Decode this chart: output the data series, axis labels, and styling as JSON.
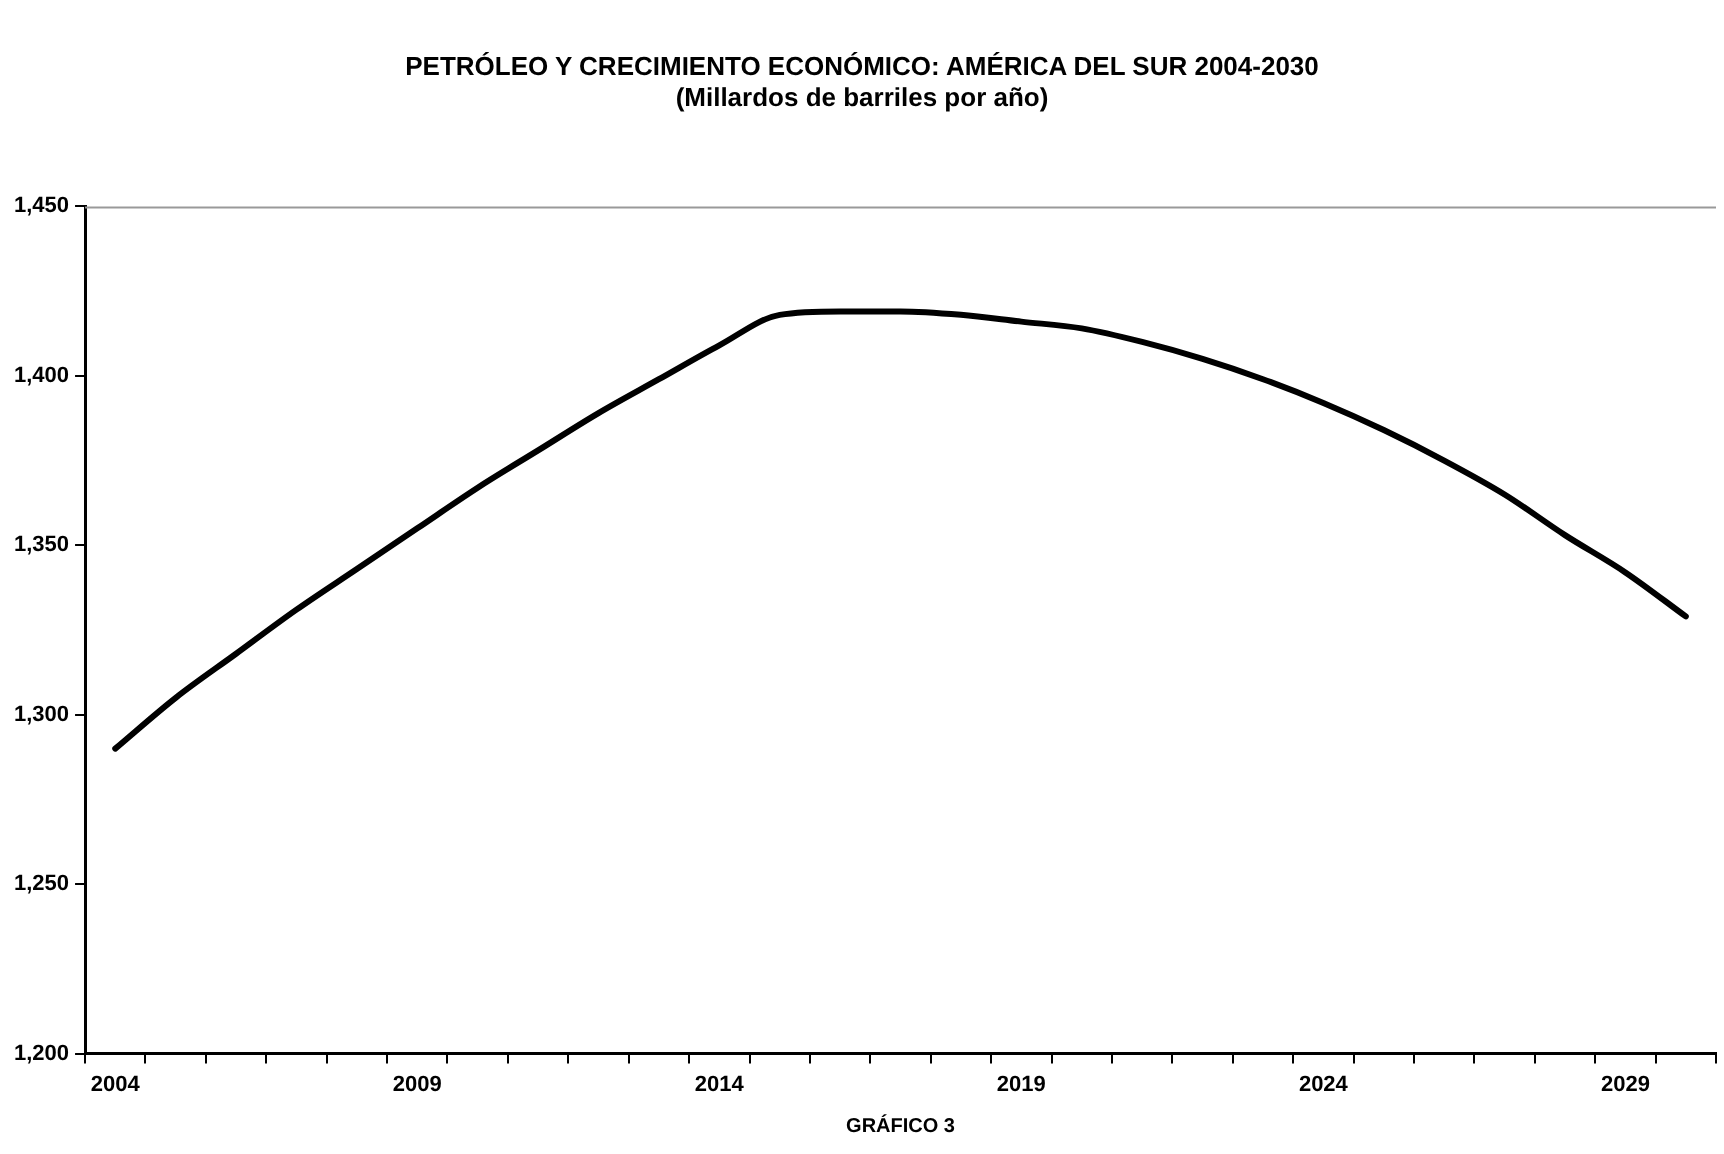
{
  "chart_data": {
    "type": "line",
    "title": [
      "PETRÓLEO Y CRECIMIENTO ECONÓMICO: AMÉRICA DEL SUR 2004-2030",
      "(Millardos de barriles por año)"
    ],
    "xlabel": "GRÁFICO 3",
    "categories": [
      "2004",
      null,
      null,
      null,
      null,
      "2009",
      null,
      null,
      null,
      null,
      "2014",
      null,
      null,
      null,
      null,
      "2019",
      null,
      null,
      null,
      null,
      "2024",
      null,
      null,
      null,
      null,
      "2029",
      null
    ],
    "series": [
      {
        "color": "#000000",
        "values": [
          1290,
          1305,
          1318,
          1331,
          1343,
          1355,
          1367,
          1378,
          1389,
          1399,
          1409,
          1418,
          1419,
          1419,
          1418,
          1416,
          1414,
          1410,
          1405,
          1399,
          1392,
          1384,
          1375,
          1365,
          1353,
          1342,
          1329
        ]
      }
    ],
    "ylim": [
      1200,
      1450
    ],
    "yticks": [
      {
        "value": 1200,
        "label": "1,200"
      },
      {
        "value": 1250,
        "label": "1,250"
      },
      {
        "value": 1300,
        "label": "1,300"
      },
      {
        "value": 1350,
        "label": "1,350"
      },
      {
        "value": 1400,
        "label": "1,400"
      },
      {
        "value": 1450,
        "label": "1,450"
      }
    ],
    "grid": false,
    "legend": false,
    "marker": "none",
    "line_style": "solid"
  }
}
